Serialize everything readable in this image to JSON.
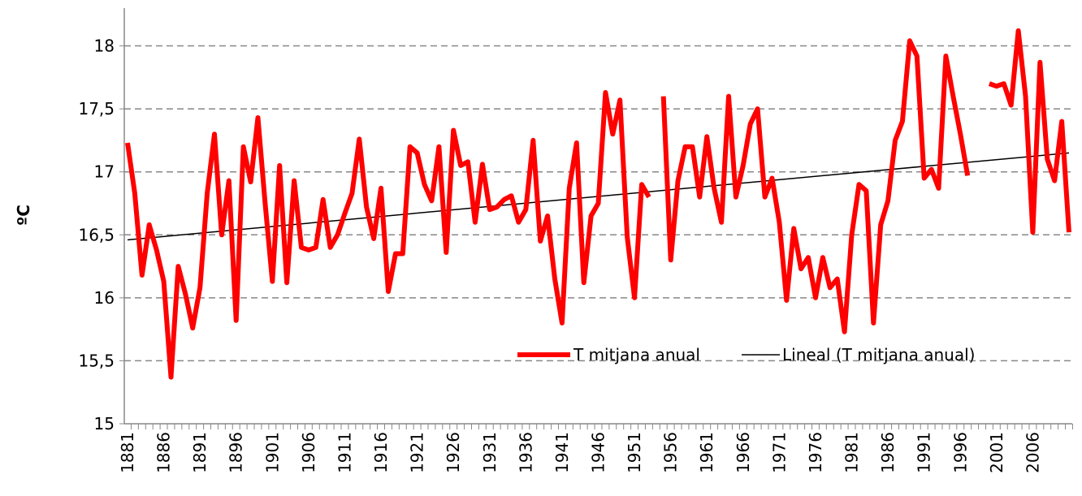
{
  "chart_data": {
    "type": "line",
    "y_label": "ºC",
    "categories": [
      "1881",
      null,
      null,
      null,
      null,
      "1886",
      null,
      null,
      null,
      null,
      "1891",
      null,
      null,
      null,
      null,
      "1896",
      null,
      null,
      null,
      null,
      "1901",
      null,
      null,
      null,
      null,
      "1906",
      null,
      null,
      null,
      null,
      "1911",
      null,
      null,
      null,
      null,
      "1916",
      null,
      null,
      null,
      null,
      "1921",
      null,
      null,
      null,
      null,
      "1926",
      null,
      null,
      null,
      null,
      "1931",
      null,
      null,
      null,
      null,
      "1936",
      null,
      null,
      null,
      null,
      "1941",
      null,
      null,
      null,
      null,
      "1946",
      null,
      null,
      null,
      null,
      "1951",
      null,
      null,
      null,
      null,
      "1956",
      null,
      null,
      null,
      null,
      "1961",
      null,
      null,
      null,
      null,
      "1966",
      null,
      null,
      null,
      null,
      "1971",
      null,
      null,
      null,
      null,
      "1976",
      null,
      null,
      null,
      null,
      "1981",
      null,
      null,
      null,
      null,
      "1986",
      null,
      null,
      null,
      null,
      "1991",
      null,
      null,
      null,
      null,
      "1996",
      null,
      null,
      null,
      null,
      "2001",
      null,
      null,
      null,
      null,
      "2006",
      null,
      null,
      null,
      null,
      null
    ],
    "series": [
      {
        "name": "T mitjana anual",
        "color": "#ff0000",
        "values": [
          17.23,
          16.83,
          16.18,
          16.58,
          16.38,
          16.13,
          15.37,
          16.25,
          16.03,
          15.76,
          16.08,
          16.83,
          17.3,
          16.5,
          16.93,
          15.82,
          17.2,
          16.92,
          17.43,
          16.75,
          16.13,
          17.05,
          16.12,
          16.93,
          16.4,
          16.38,
          16.4,
          16.78,
          16.4,
          16.5,
          16.67,
          16.83,
          17.26,
          16.72,
          16.47,
          16.87,
          16.05,
          16.35,
          16.35,
          17.2,
          17.15,
          16.9,
          16.77,
          17.2,
          16.36,
          17.33,
          17.05,
          17.08,
          16.6,
          17.06,
          16.7,
          16.72,
          16.78,
          16.81,
          16.6,
          16.7,
          17.25,
          16.45,
          16.65,
          16.15,
          15.8,
          16.87,
          17.23,
          16.12,
          16.65,
          16.75,
          17.63,
          17.3,
          17.57,
          16.48,
          16.0,
          16.9,
          16.8,
          null,
          17.6,
          16.3,
          16.93,
          17.2,
          17.2,
          16.8,
          17.28,
          16.87,
          16.6,
          17.6,
          16.8,
          17.05,
          17.38,
          17.5,
          16.8,
          16.95,
          16.6,
          15.98,
          16.55,
          16.23,
          16.32,
          16.0,
          16.32,
          16.08,
          16.15,
          15.73,
          16.5,
          16.9,
          16.85,
          15.8,
          16.58,
          16.77,
          17.25,
          17.4,
          18.04,
          17.92,
          16.95,
          17.02,
          16.87,
          17.92,
          17.6,
          17.3,
          16.97,
          null,
          null,
          17.7,
          17.68,
          17.7,
          17.53,
          18.12,
          17.6,
          16.52,
          17.87,
          17.1,
          16.93,
          17.4,
          16.52
        ]
      }
    ],
    "trendline": {
      "name": "Lineal (T mitjana anual)",
      "color": "#000000",
      "values": [
        16.46,
        17.15
      ]
    },
    "ylim": [
      15,
      18.3
    ],
    "yticks": [
      15,
      {
        "value": 15.5,
        "label": "15,5"
      },
      16,
      {
        "value": 16.5,
        "label": "16,5"
      },
      17,
      {
        "value": 17.5,
        "label": "17,5"
      },
      18
    ],
    "grid": true,
    "legend": "inside-bottom-right"
  }
}
